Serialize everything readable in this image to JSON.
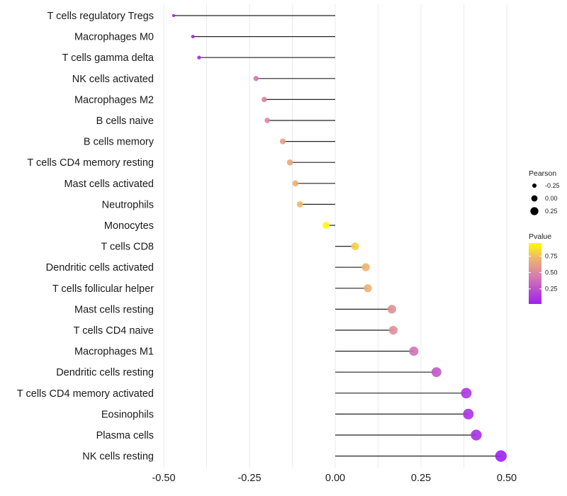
{
  "chart_data": {
    "type": "lollipop",
    "title": "",
    "xlabel": "",
    "ylabel": "",
    "xlim": [
      -0.5,
      0.5
    ],
    "x_ticks": [
      -0.5,
      -0.25,
      0.0,
      0.25,
      0.5
    ],
    "x_tick_labels": [
      "-0.50",
      "-0.25",
      "0.00",
      "0.25",
      "0.50"
    ],
    "grid": true,
    "categories": [
      "T cells regulatory  Tregs",
      "Macrophages M0",
      "T cells gamma delta",
      "NK cells activated",
      "Macrophages M2",
      "B cells naive",
      "B cells memory",
      "T cells CD4 memory resting",
      "Mast cells activated",
      "Neutrophils",
      "Monocytes",
      "T cells CD8",
      "Dendritic cells activated",
      "T cells follicular helper",
      "Mast cells resting",
      "T cells CD4 naive",
      "Macrophages M1",
      "Dendritic cells resting",
      "T cells CD4 memory activated",
      "Eosinophils",
      "Plasma cells",
      "NK cells resting"
    ],
    "pearson": [
      -0.471,
      -0.415,
      -0.397,
      -0.231,
      -0.207,
      -0.198,
      -0.153,
      -0.132,
      -0.116,
      -0.103,
      -0.027,
      0.058,
      0.089,
      0.095,
      0.165,
      0.169,
      0.229,
      0.295,
      0.382,
      0.388,
      0.411,
      0.483
    ],
    "pvalue": [
      0.02,
      0.05,
      0.07,
      0.42,
      0.48,
      0.5,
      0.62,
      0.66,
      0.7,
      0.73,
      0.93,
      0.8,
      0.72,
      0.7,
      0.55,
      0.54,
      0.4,
      0.28,
      0.12,
      0.11,
      0.08,
      0.02
    ],
    "legends": {
      "size": {
        "title": "Pearson",
        "entries": [
          {
            "label": "-0.25",
            "value": -0.25
          },
          {
            "label": "0.00",
            "value": 0.0
          },
          {
            "label": "0.25",
            "value": 0.25
          }
        ]
      },
      "color": {
        "title": "Pvalue",
        "range": [
          0.02,
          0.95
        ],
        "ticks": [
          0.75,
          0.5,
          0.25
        ],
        "tick_labels": [
          "0.75",
          "0.50",
          "0.25"
        ],
        "low_color": "#A020F0",
        "mid_color": "#D67AB0",
        "high_color": "#FFFF00"
      },
      "placement": "right"
    }
  }
}
